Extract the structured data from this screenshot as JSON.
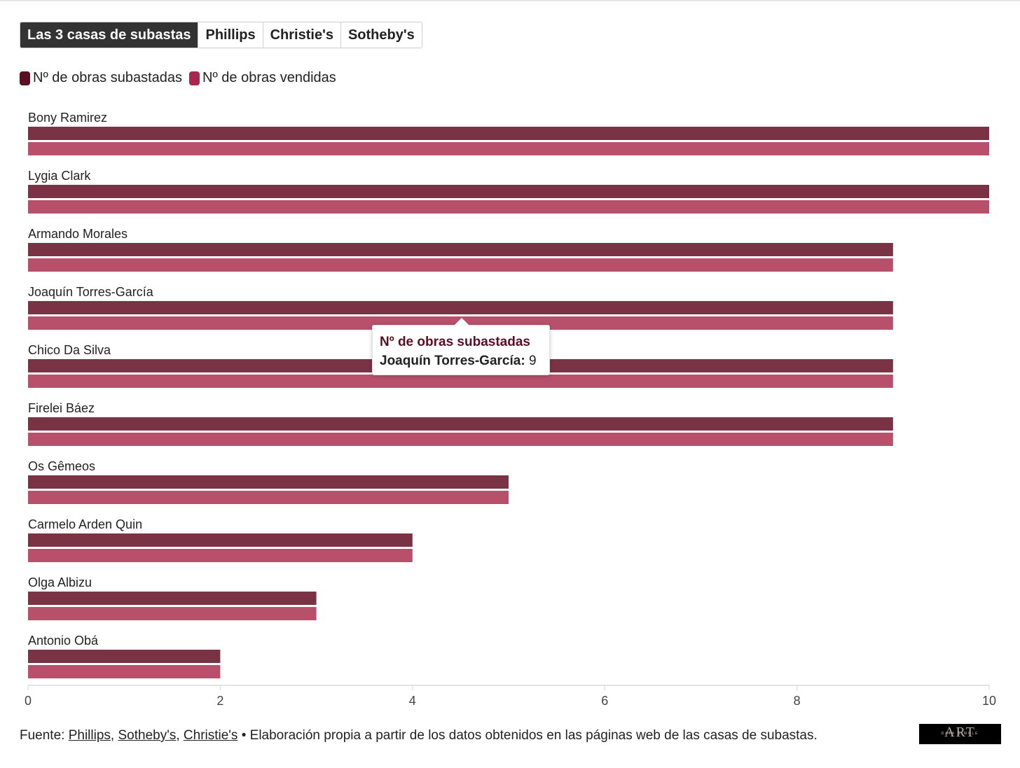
{
  "tabs": [
    {
      "label": "Las 3 casas de subastas",
      "active": true
    },
    {
      "label": "Phillips",
      "active": false
    },
    {
      "label": "Christie's",
      "active": false
    },
    {
      "label": "Sotheby's",
      "active": false
    }
  ],
  "legend": [
    {
      "label": "Nº de obras subastadas",
      "color": "#5a0f23"
    },
    {
      "label": "Nº de obras vendidas",
      "color": "#a7284f"
    }
  ],
  "chart_data": {
    "type": "bar",
    "orientation": "horizontal",
    "categories": [
      "Bony Ramirez",
      "Lygia Clark",
      "Armando Morales",
      "Joaquín Torres-García",
      "Chico Da Silva",
      "Firelei Báez",
      "Os Gêmeos",
      "Carmelo Arden Quin",
      "Olga Albizu",
      "Antonio Obá"
    ],
    "series": [
      {
        "name": "Nº de obras subastadas",
        "color": "#7a3344",
        "values": [
          10,
          10,
          9,
          9,
          9,
          9,
          5,
          4,
          3,
          2
        ]
      },
      {
        "name": "Nº de obras vendidas",
        "color": "#b8506c",
        "values": [
          10,
          10,
          9,
          9,
          9,
          9,
          5,
          4,
          3,
          2
        ]
      }
    ],
    "xlim": [
      0,
      10
    ],
    "xticks": [
      0,
      2,
      4,
      6,
      8,
      10
    ],
    "grid": false,
    "legend_position": "top-left"
  },
  "tooltip": {
    "title": "Nº de obras subastadas",
    "label": "Joaquín Torres-García:",
    "value": "9"
  },
  "footer": {
    "prefix": "Fuente:",
    "sources": [
      "Phillips",
      "Sotheby's",
      "Christie's"
    ],
    "separator": ",",
    "text": "• Elaboración propia a partir de los datos obtenidos en las páginas web de las casas de subastas."
  },
  "logo": {
    "main": "ART",
    "sub": "DATA SIMPLE"
  }
}
